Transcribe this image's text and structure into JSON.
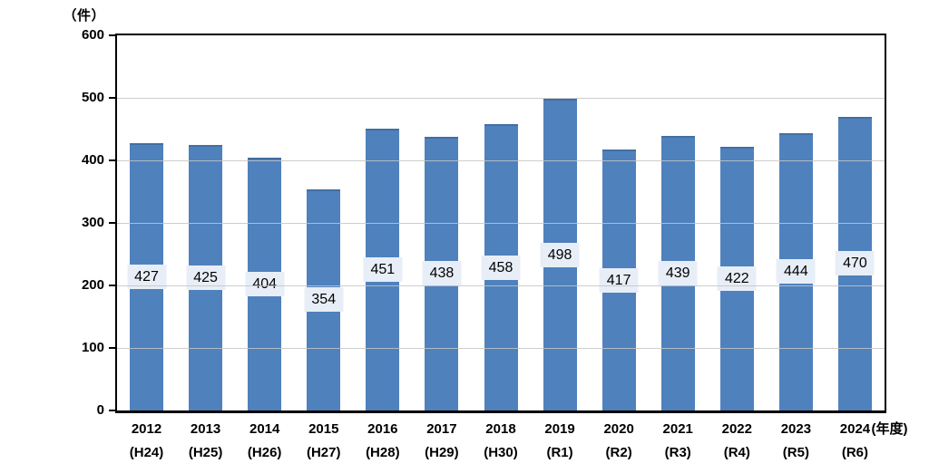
{
  "chart_data": {
    "type": "bar",
    "title": "",
    "y_unit_label": "（件）",
    "x_unit_suffix": "(年度)",
    "xlabel": "",
    "ylabel": "",
    "ylim": [
      0,
      600
    ],
    "ytick_step": 100,
    "grid": true,
    "legend_position": "none",
    "categories": [
      "2012",
      "2013",
      "2014",
      "2015",
      "2016",
      "2017",
      "2018",
      "2019",
      "2020",
      "2021",
      "2022",
      "2023",
      "2024"
    ],
    "era_labels": [
      "(H24)",
      "(H25)",
      "(H26)",
      "(H27)",
      "(H28)",
      "(H29)",
      "(H30)",
      "(R1)",
      "(R2)",
      "(R3)",
      "(R4)",
      "(R5)",
      "(R6)"
    ],
    "values": [
      427,
      425,
      404,
      354,
      451,
      438,
      458,
      498,
      417,
      439,
      422,
      444,
      470
    ],
    "colors": {
      "bar": "#4F81BD",
      "value_label_bg": "#E8EEF7",
      "gridline": "#C4C4C4",
      "axis": "#000000",
      "text": "#000000",
      "background": "#FFFFFF"
    }
  }
}
